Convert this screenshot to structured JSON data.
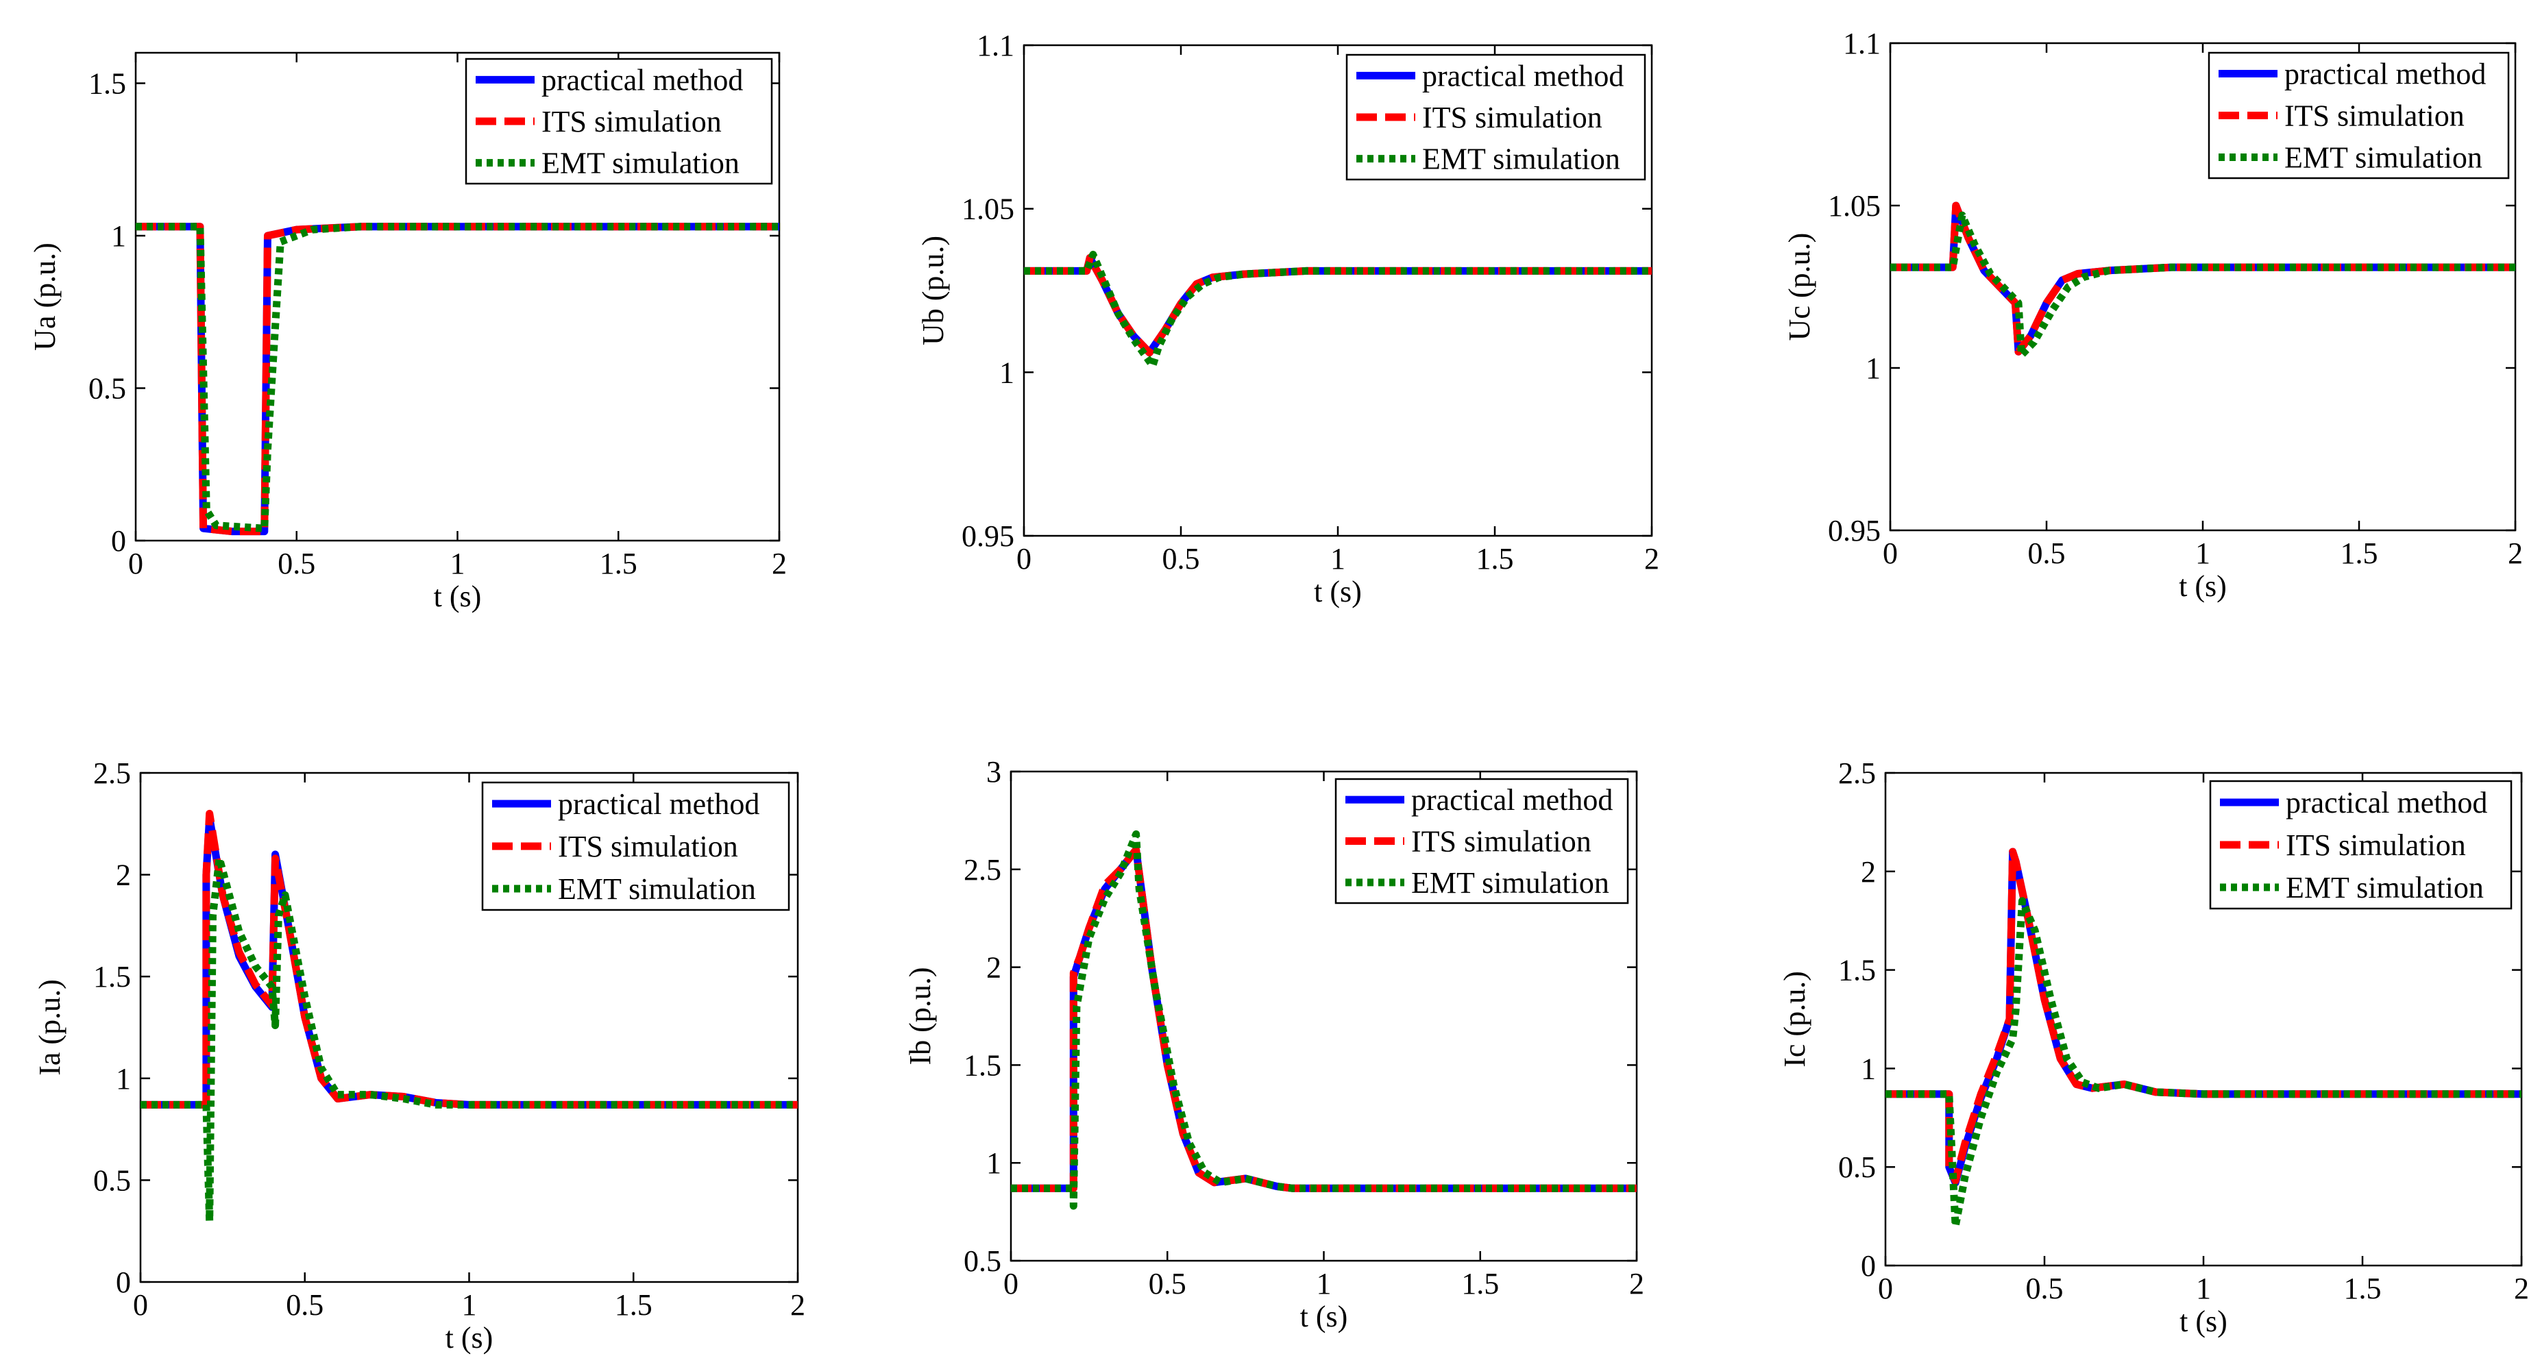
{
  "colors": {
    "practical": "#0000ff",
    "its": "#ff0000",
    "emt": "#008000",
    "axis": "#000000",
    "background": "#ffffff"
  },
  "chart_data": [
    {
      "id": "ua",
      "type": "line",
      "xlabel": "t (s)",
      "ylabel": "Ua (p.u.)",
      "xlim": [
        0,
        2
      ],
      "ylim": [
        0,
        1.6
      ],
      "xticks": [
        0,
        0.5,
        1,
        1.5,
        2
      ],
      "xtick_labels": [
        "0",
        "0.5",
        "1",
        "1.5",
        "2"
      ],
      "yticks": [
        0,
        0.5,
        1,
        1.5
      ],
      "ytick_labels": [
        "0",
        "0.5",
        "1",
        "1.5"
      ],
      "legend_position": "top-right",
      "series": [
        {
          "name": "practical method",
          "style": "solid",
          "x": [
            0,
            0.2,
            0.21,
            0.3,
            0.4,
            0.41,
            0.5,
            0.7,
            2
          ],
          "y": [
            1.03,
            1.03,
            0.04,
            0.03,
            0.03,
            1.0,
            1.02,
            1.03,
            1.03
          ]
        },
        {
          "name": "ITS simulation",
          "style": "dashed",
          "x": [
            0,
            0.2,
            0.21,
            0.3,
            0.4,
            0.41,
            0.5,
            0.7,
            2
          ],
          "y": [
            1.03,
            1.03,
            0.04,
            0.03,
            0.03,
            1.0,
            1.02,
            1.03,
            1.03
          ]
        },
        {
          "name": "EMT simulation",
          "style": "dotted",
          "x": [
            0,
            0.2,
            0.22,
            0.25,
            0.4,
            0.41,
            0.45,
            0.55,
            0.7,
            2
          ],
          "y": [
            1.03,
            1.03,
            0.1,
            0.05,
            0.04,
            0.3,
            0.98,
            1.02,
            1.03,
            1.03
          ]
        }
      ]
    },
    {
      "id": "ub",
      "type": "line",
      "xlabel": "t (s)",
      "ylabel": "Ub (p.u.)",
      "xlim": [
        0,
        2
      ],
      "ylim": [
        0.95,
        1.1
      ],
      "xticks": [
        0,
        0.5,
        1,
        1.5,
        2
      ],
      "xtick_labels": [
        "0",
        "0.5",
        "1",
        "1.5",
        "2"
      ],
      "yticks": [
        0.95,
        1,
        1.05,
        1.1
      ],
      "ytick_labels": [
        "0.95",
        "1",
        "1.05",
        "1.1"
      ],
      "legend_position": "top-right",
      "series": [
        {
          "name": "practical method",
          "style": "solid",
          "x": [
            0,
            0.2,
            0.21,
            0.25,
            0.3,
            0.35,
            0.4,
            0.45,
            0.5,
            0.55,
            0.6,
            0.7,
            0.9,
            2
          ],
          "y": [
            1.031,
            1.031,
            1.035,
            1.028,
            1.018,
            1.011,
            1.006,
            1.013,
            1.021,
            1.027,
            1.029,
            1.03,
            1.031,
            1.031
          ]
        },
        {
          "name": "ITS simulation",
          "style": "dashed",
          "x": [
            0,
            0.2,
            0.21,
            0.25,
            0.3,
            0.35,
            0.4,
            0.45,
            0.5,
            0.55,
            0.6,
            0.7,
            0.9,
            2
          ],
          "y": [
            1.031,
            1.031,
            1.035,
            1.028,
            1.018,
            1.011,
            1.006,
            1.013,
            1.021,
            1.027,
            1.029,
            1.03,
            1.031,
            1.031
          ]
        },
        {
          "name": "EMT simulation",
          "style": "dotted",
          "x": [
            0,
            0.2,
            0.22,
            0.26,
            0.3,
            0.35,
            0.41,
            0.43,
            0.47,
            0.52,
            0.57,
            0.62,
            0.7,
            0.9,
            2
          ],
          "y": [
            1.031,
            1.031,
            1.036,
            1.027,
            1.018,
            1.01,
            1.002,
            1.008,
            1.016,
            1.023,
            1.027,
            1.029,
            1.03,
            1.031,
            1.031
          ]
        }
      ]
    },
    {
      "id": "uc",
      "type": "line",
      "xlabel": "t (s)",
      "ylabel": "Uc (p.u.)",
      "xlim": [
        0,
        2
      ],
      "ylim": [
        0.95,
        1.1
      ],
      "xticks": [
        0,
        0.5,
        1,
        1.5,
        2
      ],
      "xtick_labels": [
        "0",
        "0.5",
        "1",
        "1.5",
        "2"
      ],
      "yticks": [
        0.95,
        1,
        1.05,
        1.1
      ],
      "ytick_labels": [
        "0.95",
        "1",
        "1.05",
        "1.1"
      ],
      "legend_position": "top-right",
      "series": [
        {
          "name": "practical method",
          "style": "solid",
          "x": [
            0,
            0.2,
            0.21,
            0.25,
            0.3,
            0.35,
            0.4,
            0.41,
            0.45,
            0.5,
            0.55,
            0.6,
            0.7,
            0.9,
            2
          ],
          "y": [
            1.031,
            1.031,
            1.05,
            1.04,
            1.03,
            1.025,
            1.02,
            1.005,
            1.01,
            1.02,
            1.027,
            1.029,
            1.03,
            1.031,
            1.031
          ]
        },
        {
          "name": "ITS simulation",
          "style": "dashed",
          "x": [
            0,
            0.2,
            0.21,
            0.25,
            0.3,
            0.35,
            0.4,
            0.41,
            0.45,
            0.5,
            0.55,
            0.6,
            0.7,
            0.9,
            2
          ],
          "y": [
            1.031,
            1.031,
            1.05,
            1.04,
            1.03,
            1.025,
            1.02,
            1.005,
            1.01,
            1.02,
            1.027,
            1.029,
            1.03,
            1.031,
            1.031
          ]
        },
        {
          "name": "EMT simulation",
          "style": "dotted",
          "x": [
            0,
            0.2,
            0.23,
            0.27,
            0.32,
            0.37,
            0.41,
            0.42,
            0.46,
            0.52,
            0.57,
            0.62,
            0.7,
            0.9,
            2
          ],
          "y": [
            1.031,
            1.031,
            1.047,
            1.038,
            1.029,
            1.024,
            1.02,
            1.004,
            1.008,
            1.018,
            1.025,
            1.028,
            1.03,
            1.031,
            1.031
          ]
        }
      ]
    },
    {
      "id": "ia",
      "type": "line",
      "xlabel": "t (s)",
      "ylabel": "Ia (p.u.)",
      "xlim": [
        0,
        2
      ],
      "ylim": [
        0,
        2.5
      ],
      "xticks": [
        0,
        0.5,
        1,
        1.5,
        2
      ],
      "xtick_labels": [
        "0",
        "0.5",
        "1",
        "1.5",
        "2"
      ],
      "yticks": [
        0,
        0.5,
        1,
        1.5,
        2,
        2.5
      ],
      "ytick_labels": [
        "0",
        "0.5",
        "1",
        "1.5",
        "2",
        "2.5"
      ],
      "legend_position": "top-right",
      "series": [
        {
          "name": "practical method",
          "style": "solid",
          "x": [
            0,
            0.2,
            0.2,
            0.21,
            0.25,
            0.3,
            0.35,
            0.4,
            0.41,
            0.45,
            0.5,
            0.55,
            0.6,
            0.7,
            0.8,
            0.9,
            1.0,
            1.2,
            2
          ],
          "y": [
            0.87,
            0.87,
            2.0,
            2.28,
            1.9,
            1.6,
            1.45,
            1.35,
            2.1,
            1.75,
            1.3,
            1.0,
            0.9,
            0.92,
            0.91,
            0.88,
            0.87,
            0.87,
            0.87
          ]
        },
        {
          "name": "ITS simulation",
          "style": "dashed",
          "x": [
            0,
            0.2,
            0.2,
            0.21,
            0.25,
            0.3,
            0.35,
            0.4,
            0.41,
            0.45,
            0.5,
            0.55,
            0.6,
            0.7,
            0.8,
            0.9,
            1.0,
            1.2,
            2
          ],
          "y": [
            0.87,
            0.87,
            2.0,
            2.3,
            1.9,
            1.62,
            1.46,
            1.36,
            2.08,
            1.75,
            1.3,
            1.0,
            0.9,
            0.92,
            0.91,
            0.88,
            0.87,
            0.87,
            0.87
          ]
        },
        {
          "name": "EMT simulation",
          "style": "dotted",
          "x": [
            0,
            0.2,
            0.21,
            0.22,
            0.24,
            0.27,
            0.3,
            0.35,
            0.4,
            0.41,
            0.42,
            0.44,
            0.5,
            0.55,
            0.6,
            0.7,
            0.8,
            0.9,
            1.0,
            1.2,
            2
          ],
          "y": [
            0.87,
            0.87,
            0.3,
            1.8,
            2.08,
            1.9,
            1.72,
            1.55,
            1.45,
            1.26,
            1.8,
            1.9,
            1.4,
            1.05,
            0.92,
            0.92,
            0.9,
            0.87,
            0.87,
            0.87,
            0.87
          ]
        }
      ]
    },
    {
      "id": "ib",
      "type": "line",
      "xlabel": "t (s)",
      "ylabel": "Ib (p.u.)",
      "xlim": [
        0,
        2
      ],
      "ylim": [
        0.5,
        3
      ],
      "xticks": [
        0,
        0.5,
        1,
        1.5,
        2
      ],
      "xtick_labels": [
        "0",
        "0.5",
        "1",
        "1.5",
        "2"
      ],
      "yticks": [
        0.5,
        1,
        1.5,
        2,
        2.5,
        3
      ],
      "ytick_labels": [
        "0.5",
        "1",
        "1.5",
        "2",
        "2.5",
        "3"
      ],
      "legend_position": "top-right",
      "series": [
        {
          "name": "practical method",
          "style": "solid",
          "x": [
            0,
            0.2,
            0.2,
            0.22,
            0.25,
            0.3,
            0.35,
            0.4,
            0.45,
            0.5,
            0.55,
            0.6,
            0.65,
            0.75,
            0.85,
            0.9,
            1.0,
            2
          ],
          "y": [
            0.87,
            0.87,
            1.95,
            2.05,
            2.2,
            2.4,
            2.5,
            2.6,
            2.0,
            1.5,
            1.15,
            0.95,
            0.9,
            0.92,
            0.88,
            0.87,
            0.87,
            0.87
          ]
        },
        {
          "name": "ITS simulation",
          "style": "dashed",
          "x": [
            0,
            0.2,
            0.2,
            0.22,
            0.25,
            0.3,
            0.35,
            0.4,
            0.45,
            0.5,
            0.55,
            0.6,
            0.65,
            0.75,
            0.85,
            0.9,
            1.0,
            2
          ],
          "y": [
            0.87,
            0.87,
            1.97,
            2.05,
            2.2,
            2.42,
            2.5,
            2.6,
            2.0,
            1.5,
            1.15,
            0.95,
            0.9,
            0.92,
            0.88,
            0.87,
            0.87,
            0.87
          ]
        },
        {
          "name": "EMT simulation",
          "style": "dotted",
          "x": [
            0,
            0.2,
            0.2,
            0.21,
            0.25,
            0.3,
            0.35,
            0.4,
            0.41,
            0.46,
            0.52,
            0.57,
            0.62,
            0.67,
            0.75,
            0.85,
            0.9,
            1.0,
            2
          ],
          "y": [
            0.87,
            0.87,
            0.78,
            1.8,
            2.15,
            2.35,
            2.48,
            2.68,
            2.4,
            1.9,
            1.4,
            1.1,
            0.95,
            0.9,
            0.92,
            0.88,
            0.87,
            0.87,
            0.87
          ]
        }
      ]
    },
    {
      "id": "ic",
      "type": "line",
      "xlabel": "t (s)",
      "ylabel": "Ic (p.u.)",
      "xlim": [
        0,
        2
      ],
      "ylim": [
        0,
        2.5
      ],
      "xticks": [
        0,
        0.5,
        1,
        1.5,
        2
      ],
      "xtick_labels": [
        "0",
        "0.5",
        "1",
        "1.5",
        "2"
      ],
      "yticks": [
        0,
        0.5,
        1,
        1.5,
        2,
        2.5
      ],
      "ytick_labels": [
        "0",
        "0.5",
        "1",
        "1.5",
        "2",
        "2.5"
      ],
      "legend_position": "top-right",
      "series": [
        {
          "name": "practical method",
          "style": "solid",
          "x": [
            0,
            0.2,
            0.2,
            0.22,
            0.25,
            0.3,
            0.35,
            0.39,
            0.4,
            0.41,
            0.45,
            0.5,
            0.55,
            0.6,
            0.65,
            0.75,
            0.85,
            1.0,
            2
          ],
          "y": [
            0.87,
            0.87,
            0.5,
            0.42,
            0.6,
            0.85,
            1.05,
            1.25,
            2.1,
            2.05,
            1.75,
            1.35,
            1.05,
            0.92,
            0.9,
            0.92,
            0.88,
            0.87,
            0.87
          ]
        },
        {
          "name": "ITS simulation",
          "style": "dashed",
          "x": [
            0,
            0.2,
            0.2,
            0.22,
            0.25,
            0.3,
            0.35,
            0.39,
            0.4,
            0.41,
            0.45,
            0.5,
            0.55,
            0.6,
            0.65,
            0.75,
            0.85,
            1.0,
            2
          ],
          "y": [
            0.87,
            0.87,
            0.5,
            0.43,
            0.62,
            0.87,
            1.07,
            1.25,
            2.1,
            2.05,
            1.75,
            1.35,
            1.05,
            0.92,
            0.9,
            0.92,
            0.88,
            0.87,
            0.87
          ]
        },
        {
          "name": "EMT simulation",
          "style": "dotted",
          "x": [
            0,
            0.2,
            0.22,
            0.25,
            0.3,
            0.35,
            0.4,
            0.41,
            0.43,
            0.47,
            0.52,
            0.57,
            0.62,
            0.67,
            0.75,
            0.85,
            1.0,
            2
          ],
          "y": [
            0.87,
            0.87,
            0.2,
            0.45,
            0.75,
            0.98,
            1.15,
            1.3,
            1.85,
            1.7,
            1.35,
            1.05,
            0.93,
            0.9,
            0.92,
            0.88,
            0.87,
            0.87
          ]
        }
      ]
    }
  ]
}
